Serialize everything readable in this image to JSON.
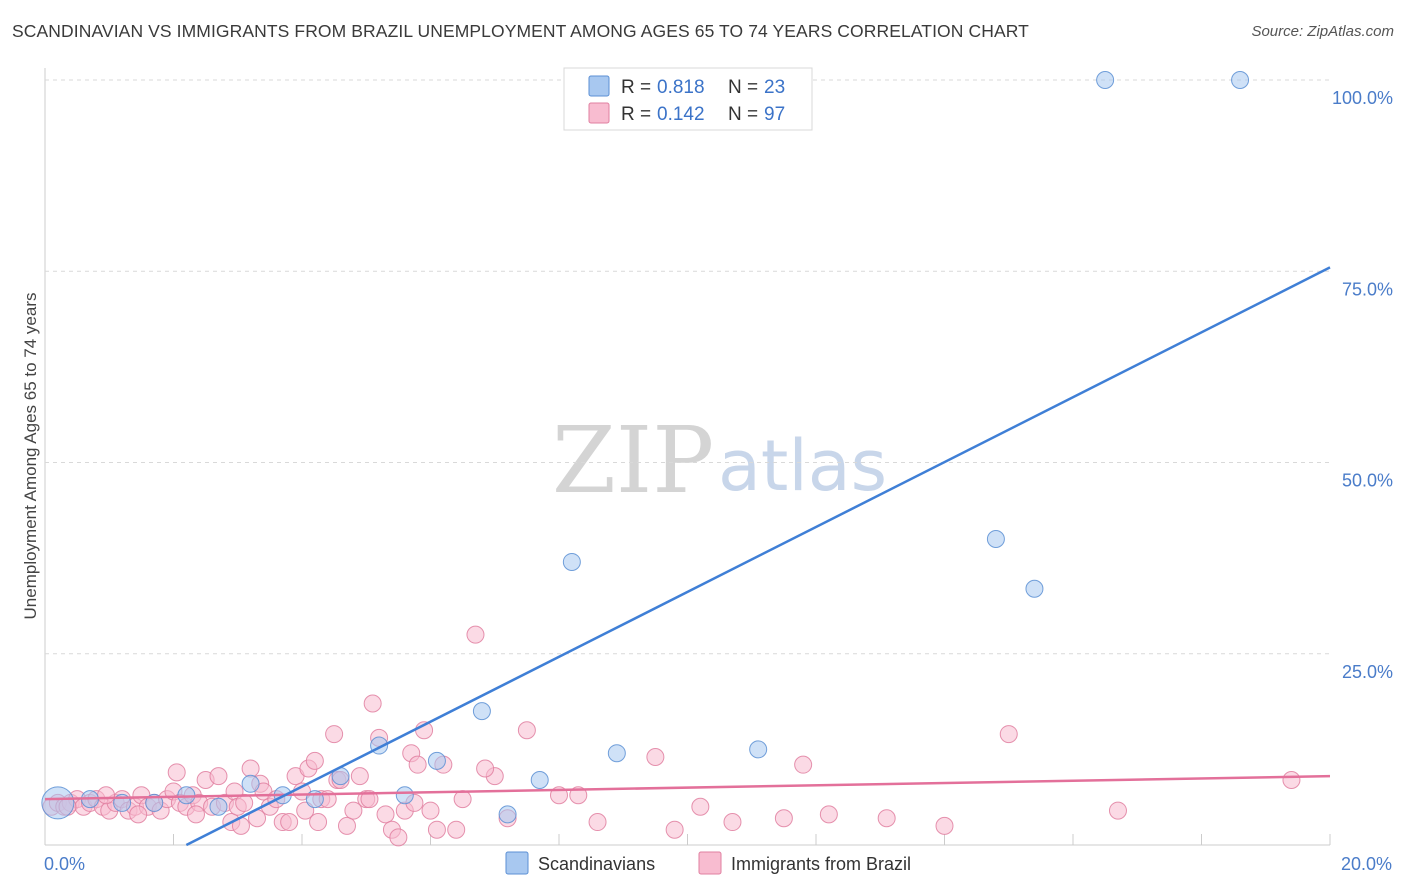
{
  "title": "SCANDINAVIAN VS IMMIGRANTS FROM BRAZIL UNEMPLOYMENT AMONG AGES 65 TO 74 YEARS CORRELATION CHART",
  "source": "Source: ZipAtlas.com",
  "watermark": {
    "zip": "ZIP",
    "atlas": "atlas"
  },
  "legend": {
    "rows": [
      {
        "r_label": "R = ",
        "r_value": "0.818",
        "n_label": "N = ",
        "n_value": "23",
        "color": "#a8c8f0",
        "edge": "#5b8fd4"
      },
      {
        "r_label": "R = ",
        "r_value": "0.142",
        "n_label": "N = ",
        "n_value": "97",
        "color": "#f8bcd0",
        "edge": "#e07fa0"
      }
    ]
  },
  "bottom_legend": [
    {
      "label": "Scandinavians",
      "color": "#a8c8f0",
      "edge": "#5b8fd4"
    },
    {
      "label": "Immigrants from Brazil",
      "color": "#f8bcd0",
      "edge": "#e07fa0"
    }
  ],
  "chart_data": {
    "type": "scatter",
    "title": "SCANDINAVIAN VS IMMIGRANTS FROM BRAZIL UNEMPLOYMENT AMONG AGES 65 TO 74 YEARS CORRELATION CHART",
    "xlabel": "",
    "ylabel": "Unemployment Among Ages 65 to 74 years",
    "xlim": [
      0,
      20
    ],
    "ylim": [
      0,
      100
    ],
    "x_tick_labels": [
      "0.0%",
      "20.0%"
    ],
    "y_tick_labels": [
      "25.0%",
      "50.0%",
      "75.0%",
      "100.0%"
    ],
    "y_ticks": [
      25,
      50,
      75,
      100
    ],
    "grid": true,
    "colors": {
      "blue": "#3f7fd6",
      "pink": "#e3709a"
    },
    "series": [
      {
        "name": "Scandinavians",
        "trend": {
          "x": [
            2.2,
            20
          ],
          "y": [
            0,
            75.5
          ]
        },
        "points": [
          {
            "x": 0.2,
            "y": 5.5,
            "big": true
          },
          {
            "x": 0.7,
            "y": 6.0
          },
          {
            "x": 1.2,
            "y": 5.5
          },
          {
            "x": 1.7,
            "y": 5.5
          },
          {
            "x": 2.2,
            "y": 6.5
          },
          {
            "x": 2.7,
            "y": 5.0
          },
          {
            "x": 3.2,
            "y": 8.0
          },
          {
            "x": 3.7,
            "y": 6.5
          },
          {
            "x": 4.2,
            "y": 6.0
          },
          {
            "x": 4.6,
            "y": 9.0
          },
          {
            "x": 5.2,
            "y": 13.0
          },
          {
            "x": 5.6,
            "y": 6.5
          },
          {
            "x": 6.1,
            "y": 11.0
          },
          {
            "x": 6.8,
            "y": 17.5
          },
          {
            "x": 7.2,
            "y": 4.0
          },
          {
            "x": 7.7,
            "y": 8.5
          },
          {
            "x": 8.2,
            "y": 37.0
          },
          {
            "x": 8.9,
            "y": 12.0
          },
          {
            "x": 11.1,
            "y": 12.5
          },
          {
            "x": 14.8,
            "y": 40.0
          },
          {
            "x": 15.4,
            "y": 33.5
          },
          {
            "x": 16.5,
            "y": 100.0
          },
          {
            "x": 18.6,
            "y": 100.0
          }
        ]
      },
      {
        "name": "Immigrants from Brazil",
        "trend": {
          "x": [
            0,
            20
          ],
          "y": [
            6.0,
            9.0
          ]
        },
        "points": [
          {
            "x": 0.1,
            "y": 5.0
          },
          {
            "x": 0.2,
            "y": 5.5
          },
          {
            "x": 0.3,
            "y": 5.0
          },
          {
            "x": 0.4,
            "y": 5.5
          },
          {
            "x": 0.5,
            "y": 6.0
          },
          {
            "x": 0.6,
            "y": 5.0
          },
          {
            "x": 0.7,
            "y": 5.5
          },
          {
            "x": 0.8,
            "y": 6.0
          },
          {
            "x": 0.9,
            "y": 5.0
          },
          {
            "x": 1.0,
            "y": 4.5
          },
          {
            "x": 1.1,
            "y": 5.5
          },
          {
            "x": 1.2,
            "y": 6.0
          },
          {
            "x": 1.3,
            "y": 4.5
          },
          {
            "x": 1.4,
            "y": 5.0
          },
          {
            "x": 1.5,
            "y": 6.5
          },
          {
            "x": 1.6,
            "y": 5.0
          },
          {
            "x": 1.7,
            "y": 5.5
          },
          {
            "x": 1.8,
            "y": 4.5
          },
          {
            "x": 1.9,
            "y": 6.0
          },
          {
            "x": 2.0,
            "y": 7.0
          },
          {
            "x": 2.05,
            "y": 9.5
          },
          {
            "x": 2.1,
            "y": 5.5
          },
          {
            "x": 2.2,
            "y": 5.0
          },
          {
            "x": 2.3,
            "y": 6.5
          },
          {
            "x": 2.4,
            "y": 5.5
          },
          {
            "x": 2.5,
            "y": 8.5
          },
          {
            "x": 2.6,
            "y": 5.0
          },
          {
            "x": 2.7,
            "y": 9.0
          },
          {
            "x": 2.8,
            "y": 5.5
          },
          {
            "x": 2.9,
            "y": 3.0
          },
          {
            "x": 2.95,
            "y": 7.0
          },
          {
            "x": 3.0,
            "y": 5.0
          },
          {
            "x": 3.1,
            "y": 5.5
          },
          {
            "x": 3.2,
            "y": 10.0
          },
          {
            "x": 3.3,
            "y": 3.5
          },
          {
            "x": 3.35,
            "y": 8.0
          },
          {
            "x": 3.4,
            "y": 7.0
          },
          {
            "x": 3.5,
            "y": 5.0
          },
          {
            "x": 3.6,
            "y": 6.0
          },
          {
            "x": 3.7,
            "y": 3.0
          },
          {
            "x": 3.8,
            "y": 3.0
          },
          {
            "x": 3.9,
            "y": 9.0
          },
          {
            "x": 4.0,
            "y": 7.0
          },
          {
            "x": 4.05,
            "y": 4.5
          },
          {
            "x": 4.1,
            "y": 10.0
          },
          {
            "x": 4.2,
            "y": 11.0
          },
          {
            "x": 4.3,
            "y": 6.0
          },
          {
            "x": 4.4,
            "y": 6.0
          },
          {
            "x": 4.5,
            "y": 14.5
          },
          {
            "x": 4.55,
            "y": 8.5
          },
          {
            "x": 4.6,
            "y": 8.5
          },
          {
            "x": 4.7,
            "y": 2.5
          },
          {
            "x": 4.8,
            "y": 4.5
          },
          {
            "x": 4.9,
            "y": 9.0
          },
          {
            "x": 5.0,
            "y": 6.0
          },
          {
            "x": 5.05,
            "y": 6.0
          },
          {
            "x": 5.1,
            "y": 18.5
          },
          {
            "x": 5.2,
            "y": 14.0
          },
          {
            "x": 5.3,
            "y": 4.0
          },
          {
            "x": 5.4,
            "y": 2.0
          },
          {
            "x": 5.5,
            "y": 1.0
          },
          {
            "x": 5.6,
            "y": 4.5
          },
          {
            "x": 5.7,
            "y": 12.0
          },
          {
            "x": 5.8,
            "y": 10.5
          },
          {
            "x": 5.9,
            "y": 15.0
          },
          {
            "x": 6.0,
            "y": 4.5
          },
          {
            "x": 6.1,
            "y": 2.0
          },
          {
            "x": 6.2,
            "y": 10.5
          },
          {
            "x": 6.4,
            "y": 2.0
          },
          {
            "x": 6.5,
            "y": 6.0
          },
          {
            "x": 6.7,
            "y": 27.5
          },
          {
            "x": 7.0,
            "y": 9.0
          },
          {
            "x": 7.2,
            "y": 3.5
          },
          {
            "x": 7.5,
            "y": 15.0
          },
          {
            "x": 8.0,
            "y": 6.5
          },
          {
            "x": 8.3,
            "y": 6.5
          },
          {
            "x": 9.5,
            "y": 11.5
          },
          {
            "x": 9.8,
            "y": 2.0
          },
          {
            "x": 10.2,
            "y": 5.0
          },
          {
            "x": 10.7,
            "y": 3.0
          },
          {
            "x": 11.5,
            "y": 3.5
          },
          {
            "x": 11.8,
            "y": 10.5
          },
          {
            "x": 12.2,
            "y": 4.0
          },
          {
            "x": 13.1,
            "y": 3.5
          },
          {
            "x": 14.0,
            "y": 2.5
          },
          {
            "x": 15.0,
            "y": 14.5
          },
          {
            "x": 16.7,
            "y": 4.5
          },
          {
            "x": 19.4,
            "y": 8.5
          },
          {
            "x": 0.35,
            "y": 5.0
          },
          {
            "x": 0.95,
            "y": 6.5
          },
          {
            "x": 1.45,
            "y": 4.0
          },
          {
            "x": 2.35,
            "y": 4.0
          },
          {
            "x": 3.05,
            "y": 2.5
          },
          {
            "x": 4.25,
            "y": 3.0
          },
          {
            "x": 5.75,
            "y": 5.5
          },
          {
            "x": 6.85,
            "y": 10.0
          },
          {
            "x": 8.6,
            "y": 3.0
          }
        ]
      }
    ]
  }
}
